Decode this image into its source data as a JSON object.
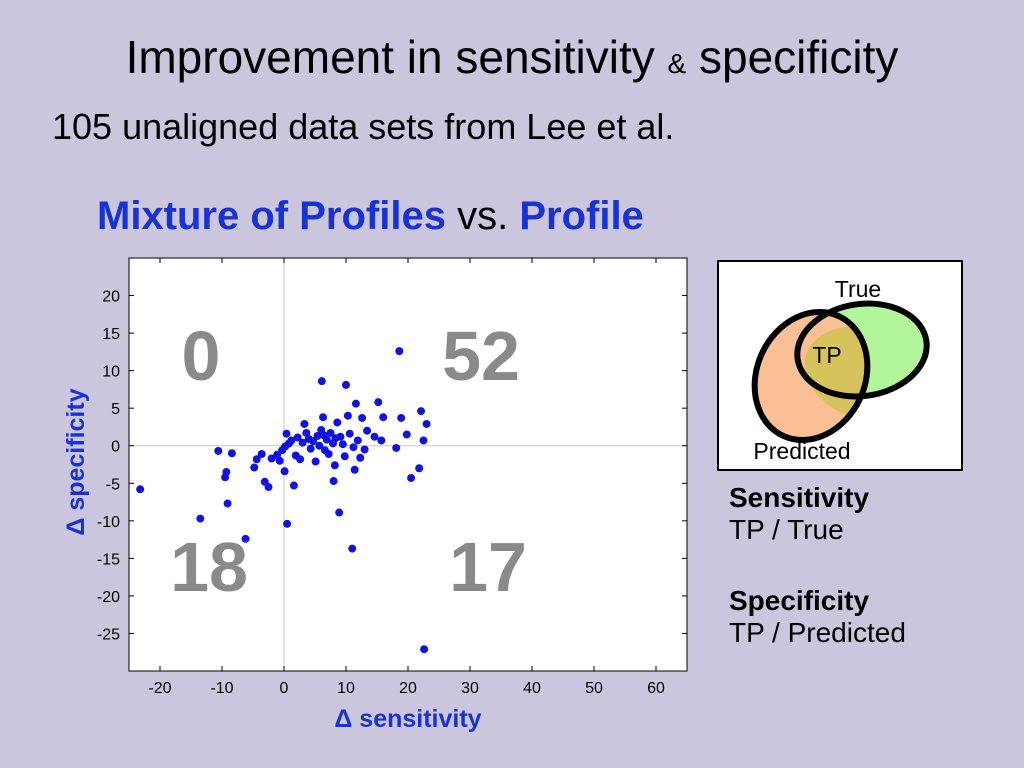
{
  "slide": {
    "title_main": "Improvement in sensitivity",
    "title_amp": "&",
    "title_end": "specificity",
    "subtitle": "105 unaligned data sets from Lee et al.",
    "heading_a": "Mixture of Profiles",
    "heading_vs": "vs.",
    "heading_b": "Profile"
  },
  "venn": {
    "true_label": "True",
    "tp_label": "TP",
    "predicted_label": "Predicted",
    "colors": {
      "true_fill": "#b3f59a",
      "predicted_fill": "#fbbf96",
      "tp_fill": "#d6c25a",
      "outline": "#000000"
    }
  },
  "definitions": {
    "sensitivity_title": "Sensitivity",
    "sensitivity_formula": "TP / True",
    "specificity_title": "Specificity",
    "specificity_formula": "TP / Predicted"
  },
  "chart_data": {
    "type": "scatter",
    "xlabel": "Δ sensitivity",
    "ylabel": "Δ specificity",
    "xlim": [
      -25,
      65
    ],
    "ylim": [
      -30,
      25
    ],
    "xticks": [
      -20,
      -10,
      0,
      10,
      20,
      30,
      40,
      50,
      60
    ],
    "yticks": [
      20,
      15,
      10,
      5,
      0,
      -5,
      -10,
      -15,
      -20,
      -25
    ],
    "quadrant_counts": [
      {
        "quadrant": "top-left",
        "label": "0"
      },
      {
        "quadrant": "top-right",
        "label": "52"
      },
      {
        "quadrant": "bottom-left",
        "label": "18"
      },
      {
        "quadrant": "bottom-right",
        "label": "17"
      }
    ],
    "point_color": "#1212e0",
    "points": [
      [
        -23.2,
        -5.8
      ],
      [
        -13.5,
        -9.7
      ],
      [
        -10.6,
        -0.7
      ],
      [
        -9.3,
        -3.5
      ],
      [
        -9.5,
        -4.2
      ],
      [
        -9.1,
        -7.7
      ],
      [
        -8.4,
        -1.0
      ],
      [
        -6.2,
        -12.4
      ],
      [
        -4.8,
        -2.9
      ],
      [
        -4.4,
        -1.8
      ],
      [
        -3.6,
        -1.1
      ],
      [
        -3.1,
        -4.8
      ],
      [
        -2.5,
        -5.5
      ],
      [
        -2.0,
        -1.7
      ],
      [
        -1.1,
        -1.2
      ],
      [
        -0.7,
        -2.0
      ],
      [
        -0.3,
        -0.6
      ],
      [
        0.1,
        -3.4
      ],
      [
        0.2,
        -0.1
      ],
      [
        0.4,
        1.6
      ],
      [
        0.5,
        -10.4
      ],
      [
        0.8,
        0.3
      ],
      [
        1.2,
        0.7
      ],
      [
        1.6,
        -5.3
      ],
      [
        1.9,
        -1.3
      ],
      [
        2.2,
        1.1
      ],
      [
        2.6,
        -1.8
      ],
      [
        3.0,
        0.4
      ],
      [
        3.3,
        2.9
      ],
      [
        3.6,
        1.7
      ],
      [
        4.0,
        0.9
      ],
      [
        4.3,
        -0.4
      ],
      [
        4.7,
        0.6
      ],
      [
        5.1,
        -2.1
      ],
      [
        5.4,
        1.3
      ],
      [
        5.7,
        0.0
      ],
      [
        6.0,
        2.1
      ],
      [
        6.4,
        1.4
      ],
      [
        6.3,
        3.8
      ],
      [
        6.6,
        -0.6
      ],
      [
        6.1,
        8.6
      ],
      [
        6.9,
        0.8
      ],
      [
        7.2,
        -1.1
      ],
      [
        7.5,
        1.7
      ],
      [
        7.9,
        0.3
      ],
      [
        8.0,
        -4.7
      ],
      [
        8.2,
        -2.6
      ],
      [
        8.3,
        1.0
      ],
      [
        8.6,
        3.1
      ],
      [
        8.9,
        -8.9
      ],
      [
        9.1,
        1.2
      ],
      [
        9.5,
        0.2
      ],
      [
        9.8,
        -1.4
      ],
      [
        10.0,
        8.1
      ],
      [
        10.3,
        4.0
      ],
      [
        10.6,
        1.6
      ],
      [
        11.0,
        -13.7
      ],
      [
        11.2,
        -0.2
      ],
      [
        11.4,
        -3.2
      ],
      [
        11.6,
        5.6
      ],
      [
        11.9,
        0.7
      ],
      [
        12.3,
        -1.6
      ],
      [
        12.6,
        3.7
      ],
      [
        13.0,
        -0.5
      ],
      [
        13.4,
        2.0
      ],
      [
        14.6,
        1.2
      ],
      [
        15.2,
        5.8
      ],
      [
        15.7,
        0.7
      ],
      [
        16.0,
        3.8
      ],
      [
        18.1,
        -0.3
      ],
      [
        18.6,
        12.6
      ],
      [
        18.9,
        3.7
      ],
      [
        19.8,
        1.5
      ],
      [
        20.5,
        -4.3
      ],
      [
        21.8,
        -3.0
      ],
      [
        22.1,
        4.6
      ],
      [
        22.5,
        0.7
      ],
      [
        22.6,
        -27.1
      ],
      [
        23.0,
        2.9
      ]
    ]
  }
}
